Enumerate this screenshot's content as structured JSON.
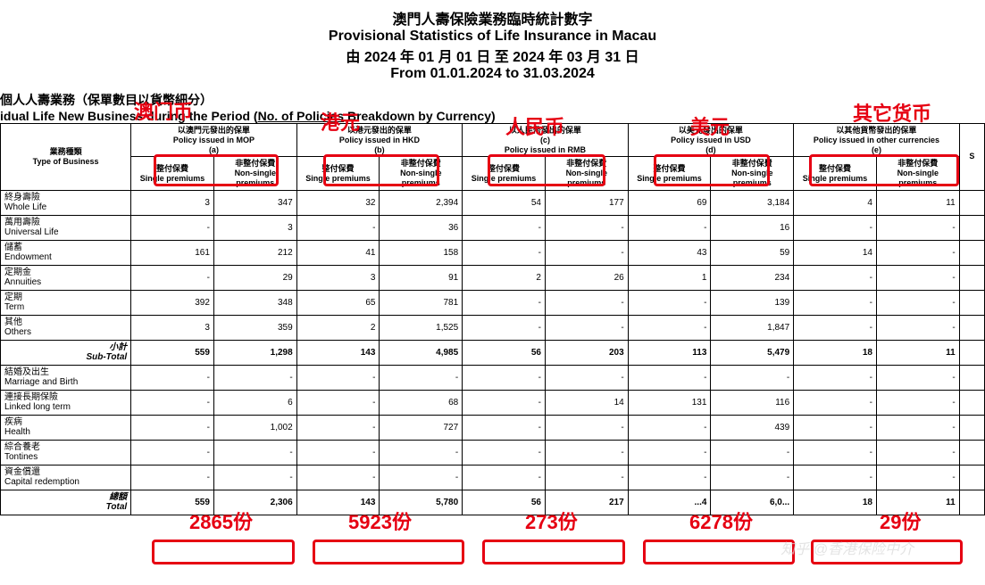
{
  "header": {
    "title_cn": "澳門人壽保險業務臨時統計數字",
    "title_en": "Provisional Statistics of Life Insurance in Macau",
    "period_cn": "由 2024 年 01 月 01 日 至 2024 年 03 月 31 日",
    "period_en": "From 01.01.2024 to 31.03.2024"
  },
  "section": {
    "cn": "個人人壽業務（保單數目以貨幣細分）",
    "en_pre": "idual Life New Business during the Period (",
    "en_u": "No. of Policies",
    "en_post": " Breakdown by Currency)"
  },
  "annotations": {
    "mop": "澳门币",
    "hkd": "港元",
    "rmb": "人民币",
    "usd": "美元",
    "other": "其它货币",
    "t_mop": "2865份",
    "t_hkd": "5923份",
    "t_rmb": "273份",
    "t_usd": "6278份",
    "t_other": "29份"
  },
  "col_headers": {
    "type_cn": "業務種類",
    "type_en": "Type of Business",
    "mop_cn": "以澳門元發出的保單",
    "mop_en": "Policy issued in MOP",
    "mop_tag": "(a)",
    "hkd_cn": "以港元發出的保單",
    "hkd_en": "Policy issued in HKD",
    "hkd_tag": "(b)",
    "rmb_cn": "以人民幣發出的保單",
    "rmb_en": "Policy issued in RMB",
    "rmb_tag": "(c)",
    "usd_cn": "以美元發出的保單",
    "usd_en": "Policy issued in USD",
    "usd_tag": "(d)",
    "oth_cn": "以其他貨幣發出的保單",
    "oth_en": "Policy issued in other currencies",
    "oth_tag": "(e)",
    "sp_cn": "整付保費",
    "sp_en": "Single premiums",
    "np_cn": "非整付保費",
    "np_en": "Non-single premiums",
    "s": "S"
  },
  "rows": [
    {
      "cn": "終身壽險",
      "en": "Whole Life",
      "v": [
        "3",
        "347",
        "32",
        "2,394",
        "54",
        "177",
        "69",
        "3,184",
        "4",
        "11"
      ]
    },
    {
      "cn": "萬用壽險",
      "en": "Universal Life",
      "v": [
        "-",
        "3",
        "-",
        "36",
        "-",
        "-",
        "-",
        "16",
        "-",
        "-"
      ]
    },
    {
      "cn": "儲蓄",
      "en": "Endowment",
      "v": [
        "161",
        "212",
        "41",
        "158",
        "-",
        "-",
        "43",
        "59",
        "14",
        "-"
      ]
    },
    {
      "cn": "定期金",
      "en": "Annuities",
      "v": [
        "-",
        "29",
        "3",
        "91",
        "2",
        "26",
        "1",
        "234",
        "-",
        "-"
      ]
    },
    {
      "cn": "定期",
      "en": "Term",
      "v": [
        "392",
        "348",
        "65",
        "781",
        "-",
        "-",
        "-",
        "139",
        "-",
        "-"
      ]
    },
    {
      "cn": "其他",
      "en": "Others",
      "v": [
        "3",
        "359",
        "2",
        "1,525",
        "-",
        "-",
        "-",
        "1,847",
        "-",
        "-"
      ]
    }
  ],
  "subtotal": {
    "cn": "小計",
    "en": "Sub-Total",
    "v": [
      "559",
      "1,298",
      "143",
      "4,985",
      "56",
      "203",
      "113",
      "5,479",
      "18",
      "11"
    ]
  },
  "rows2": [
    {
      "cn": "結婚及出生",
      "en": "Marriage and Birth",
      "v": [
        "-",
        "-",
        "-",
        "-",
        "-",
        "-",
        "-",
        "-",
        "-",
        "-"
      ]
    },
    {
      "cn": "連接長期保險",
      "en": "Linked long term",
      "v": [
        "-",
        "6",
        "-",
        "68",
        "-",
        "14",
        "131",
        "116",
        "-",
        "-"
      ]
    },
    {
      "cn": "疾病",
      "en": "Health",
      "v": [
        "-",
        "1,002",
        "-",
        "727",
        "-",
        "-",
        "-",
        "439",
        "-",
        "-"
      ]
    },
    {
      "cn": "綜合養老",
      "en": "Tontines",
      "v": [
        "-",
        "-",
        "-",
        "-",
        "-",
        "-",
        "-",
        "-",
        "-",
        "-"
      ]
    },
    {
      "cn": "資金償還",
      "en": "Capital redemption",
      "v": [
        "-",
        "-",
        "-",
        "-",
        "-",
        "-",
        "-",
        "-",
        "-",
        "-"
      ]
    }
  ],
  "total": {
    "cn": "總額",
    "en": "Total",
    "v": [
      "559",
      "2,306",
      "143",
      "5,780",
      "56",
      "217",
      "...4",
      "6,0...",
      "18",
      "11"
    ]
  },
  "watermark": "知乎 @香港保险中介",
  "style": {
    "annot_color": "#e60012",
    "border_color": "#000000",
    "bg": "#ffffff"
  }
}
